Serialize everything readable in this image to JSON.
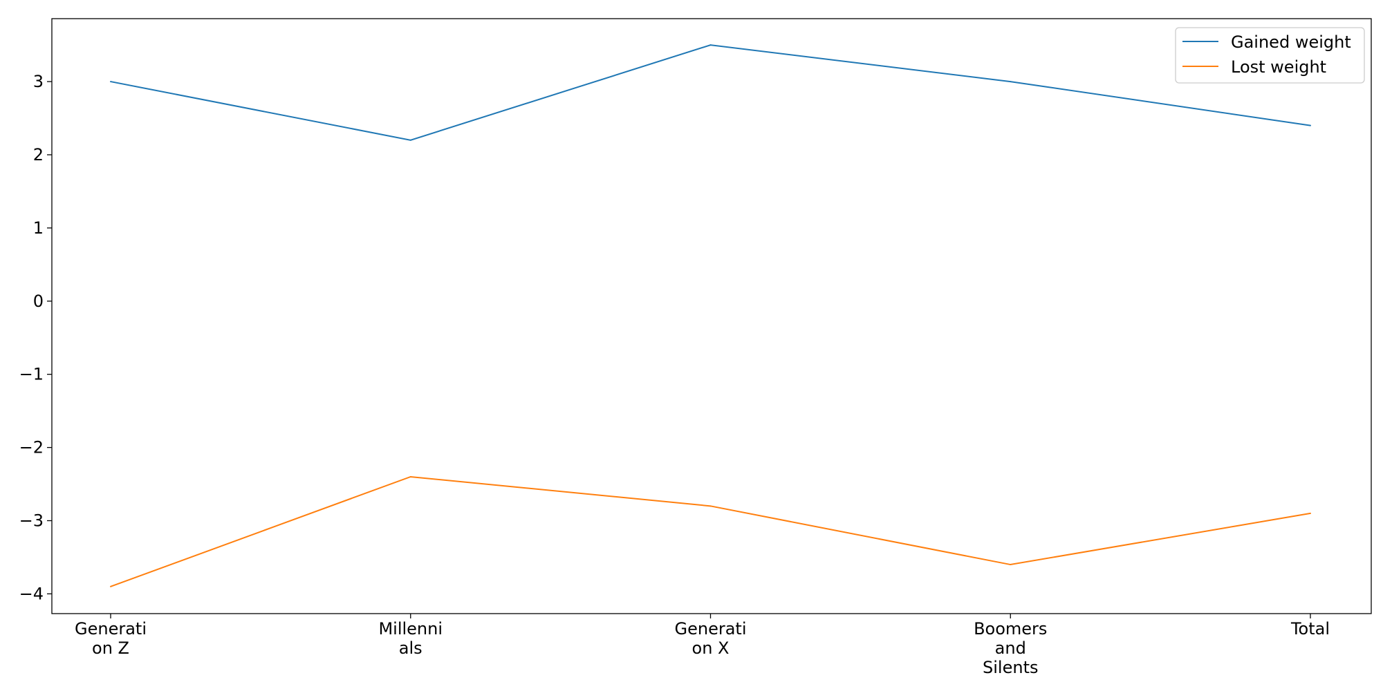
{
  "chart_data": {
    "type": "line",
    "categories": [
      [
        "Generati",
        "on Z"
      ],
      [
        "Millenni",
        "als"
      ],
      [
        "Generati",
        "on X"
      ],
      [
        "Boomers",
        "and",
        "Silents"
      ],
      [
        "Total"
      ]
    ],
    "series": [
      {
        "name": "Gained weight",
        "color": "#1f77b4",
        "values": [
          3.0,
          2.2,
          3.5,
          3.0,
          2.4
        ]
      },
      {
        "name": "Lost weight",
        "color": "#ff7f0e",
        "values": [
          -3.9,
          -2.4,
          -2.8,
          -3.6,
          -2.9
        ]
      }
    ],
    "title": "",
    "xlabel": "",
    "ylabel": "",
    "ylim": [
      -4.27,
      3.86
    ],
    "yticks": [
      -4,
      -3,
      -2,
      -1,
      0,
      1,
      2,
      3
    ],
    "ytick_labels": [
      "−4",
      "−3",
      "−2",
      "−1",
      "0",
      "1",
      "2",
      "3"
    ],
    "grid": false,
    "legend_position": "top-right"
  }
}
